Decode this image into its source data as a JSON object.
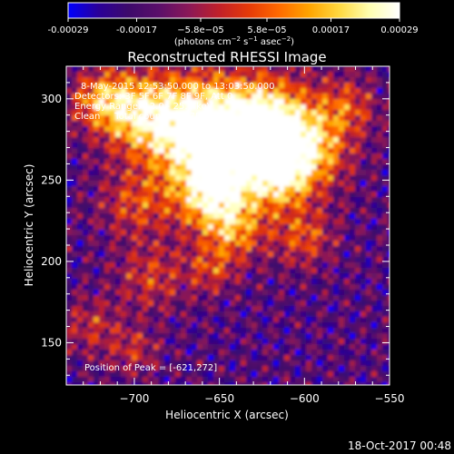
{
  "colorbar": {
    "tick_labels": [
      "-0.00029",
      "-0.00017",
      "−5.8e−05",
      "5.8e−05",
      "0.00017",
      "0.00029"
    ],
    "tick_values": [
      -0.00029,
      -0.00017,
      -5.8e-05,
      5.8e-05,
      0.00017,
      0.00029
    ],
    "range": [
      -0.00029,
      0.00029
    ],
    "unit_main": "(photons cm",
    "unit_sup1": "−2",
    "unit_mid": " s",
    "unit_sup2": "−1",
    "unit_end": " asec",
    "unit_sup3": "−2",
    "unit_close": ")",
    "palette": [
      "#0000ff",
      "#2a0099",
      "#3d0a6b",
      "#5a0f6a",
      "#8a1858",
      "#c0202a",
      "#e63a08",
      "#ff6a00",
      "#ffa400",
      "#ffd840",
      "#ffffb0",
      "#ffffff"
    ]
  },
  "chart_data": {
    "type": "heatmap",
    "title": "Reconstructed RHESSI Image",
    "xlabel": "Heliocentric X (arcsec)",
    "ylabel": "Heliocentric Y (arcsec)",
    "xlim": [
      -740,
      -550
    ],
    "ylim": [
      124,
      320
    ],
    "x_ticks": [
      -700,
      -650,
      -600,
      -550
    ],
    "x_tick_labels": [
      "−700",
      "−650",
      "−600",
      "−550"
    ],
    "y_ticks": [
      150,
      200,
      250,
      300
    ],
    "y_tick_labels": [
      "150",
      "200",
      "250",
      "300"
    ],
    "peak": [
      -621,
      272
    ],
    "annotations": [
      "8-May-2015 12:53:50.000 to 13:03:50.000",
      "Detectors: 3F 5F 6F 7F 8F 9F, Att 0",
      "Energy Range: 12.0 - 25.0 keV",
      "Clean     Total counts: 1.87E+04"
    ],
    "peak_label": "Position of Peak = [-621,272]"
  },
  "footer": {
    "timestamp": "18-Oct-2017 00:48"
  }
}
